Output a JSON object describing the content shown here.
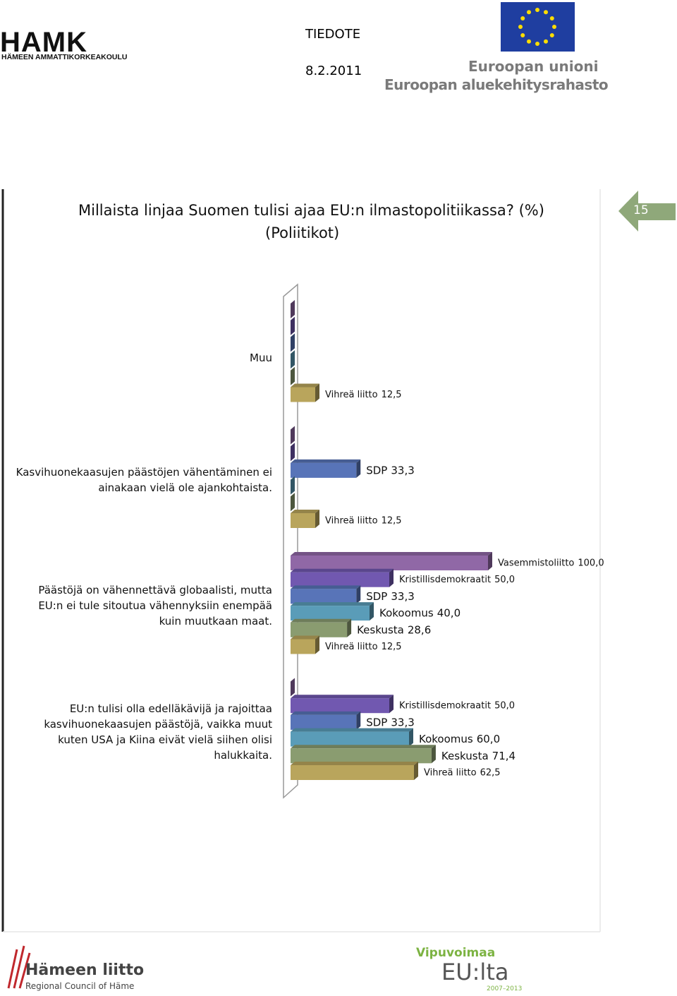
{
  "page": {
    "header": {
      "logo": "HAMK",
      "logo_sub": "HÄMEEN AMMATTIKORKEAKOULU",
      "doc_type": "TIEDOTE",
      "date": "8.2.2011",
      "eu_line1": "Euroopan unioni",
      "eu_line2": "Euroopan aluekehitysrahasto"
    },
    "page_number": "15",
    "footer": {
      "left_title": "Hämeen liitto",
      "left_sub": "Regional Council of Häme",
      "right_title": "Vipuvoimaa",
      "right_main": "EU:lta",
      "right_years": "2007–2013"
    }
  },
  "chart_data": {
    "type": "bar3d_horizontal",
    "title": "Millaista linjaa Suomen tulisi ajaa EU:n ilmastopolitiikassa? (%)",
    "subtitle": "(Poliitikot)",
    "categories": [
      "Muu",
      "Kasvihuonekaasujen päästöjen vähentäminen ei ainakaan vielä ole ajankohtaista.",
      "Päästöjä on vähennettävä globaalisti, mutta EU:n ei tule sitoutua vähennyksiin enempää kuin muutkaan maat.",
      "EU:n tulisi olla edelläkävijä ja rajoittaa kasvihuonekaasujen päästöjä, vaikka muut kuten USA ja Kiina eivät vielä siihen olisi halukkaita."
    ],
    "xlim": [
      0,
      100
    ],
    "series": [
      {
        "name": "Vasemmistoliitto",
        "color": "#9068a6",
        "values": [
          0,
          0,
          100,
          0
        ],
        "value_labels": [
          null,
          null,
          "100,0",
          null
        ]
      },
      {
        "name": "Kristillisdemokraatit",
        "color": "#7158b0",
        "values": [
          0,
          0,
          50,
          50
        ],
        "value_labels": [
          null,
          null,
          "50,0",
          "50,0"
        ]
      },
      {
        "name": "SDP",
        "color": "#5874b8",
        "values": [
          0,
          33.3,
          33.3,
          33.3
        ],
        "value_labels": [
          null,
          "33,3",
          "33,3",
          "33,3"
        ]
      },
      {
        "name": "Kokoomus",
        "color": "#5a9cb8",
        "values": [
          0,
          0,
          40,
          60
        ],
        "value_labels": [
          null,
          null,
          "40,0",
          "60,0"
        ]
      },
      {
        "name": "Keskusta",
        "color": "#8a9c70",
        "values": [
          0,
          0,
          28.6,
          71.4
        ],
        "value_labels": [
          null,
          null,
          "28,6",
          "71,4"
        ]
      },
      {
        "name": "Vihreä liitto",
        "color": "#b9a55c",
        "values": [
          12.5,
          12.5,
          12.5,
          62.5
        ],
        "value_labels": [
          "12,5",
          "12,5",
          "12,5",
          "62,5"
        ]
      }
    ]
  }
}
